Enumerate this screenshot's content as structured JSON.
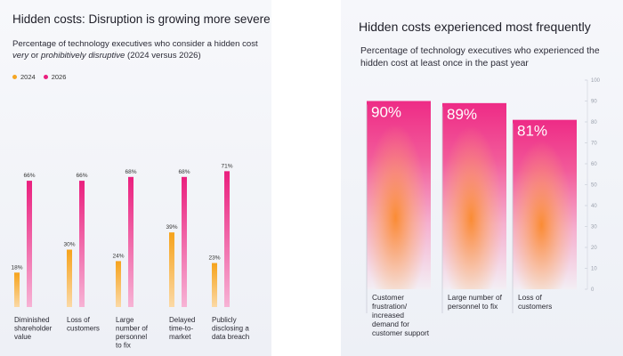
{
  "colors": {
    "c2024": "#f5a623",
    "c2026": "#ea1f7e"
  },
  "left": {
    "title": "Hidden costs: Disruption is growing more severe",
    "subtitle_pre": "Percentage of technology executives who consider a hidden cost ",
    "subtitle_em": "very",
    "subtitle_mid": " or ",
    "subtitle_em2": "prohibitively disruptive",
    "subtitle_post": " (2024 versus 2026)",
    "legend": [
      {
        "label": "2024",
        "color": "#f5a623"
      },
      {
        "label": "2026",
        "color": "#ea1f7e"
      }
    ]
  },
  "right": {
    "title": "Hidden costs experienced most frequently",
    "subtitle": "Percentage of technology executives who experienced the hidden cost at least once in the past year"
  },
  "chart_data": [
    {
      "type": "bar",
      "title": "Hidden costs: Disruption is growing more severe",
      "categories": [
        "Diminished shareholder value",
        "Loss of customers",
        "Large number of personnel to fix",
        "Delayed time-to-market",
        "Publicly disclosing a data breach"
      ],
      "category_lines": [
        [
          "Diminished",
          "shareholder",
          "value"
        ],
        [
          "Loss of",
          "customers"
        ],
        [
          "Large",
          "number of",
          "personnel",
          "to fix"
        ],
        [
          "Delayed",
          "time-to-",
          "market"
        ],
        [
          "Publicly",
          "disclosing a",
          "data breach"
        ]
      ],
      "series": [
        {
          "name": "2024",
          "values": [
            18,
            30,
            24,
            39,
            23
          ],
          "labels": [
            "18%",
            "30%",
            "24%",
            "39%",
            "23%"
          ]
        },
        {
          "name": "2026",
          "values": [
            66,
            66,
            68,
            68,
            71
          ],
          "labels": [
            "66%",
            "66%",
            "68%",
            "68%",
            "71%"
          ]
        }
      ],
      "ylim": [
        0,
        100
      ]
    },
    {
      "type": "bar",
      "title": "Hidden costs experienced most frequently",
      "categories": [
        "Customer frustration/ increased demand for customer support",
        "Large number of personnel to fix",
        "Loss of customers"
      ],
      "category_lines": [
        [
          "Customer",
          "frustration/",
          "increased",
          "demand for",
          "customer support"
        ],
        [
          "Large number of",
          "personnel to fix"
        ],
        [
          "Loss of",
          "customers"
        ]
      ],
      "values": [
        90,
        89,
        81
      ],
      "labels": [
        "90%",
        "89%",
        "81%"
      ],
      "ylim": [
        0,
        100
      ],
      "yticks": [
        0,
        10,
        20,
        30,
        40,
        50,
        60,
        70,
        80,
        90,
        100
      ]
    }
  ]
}
